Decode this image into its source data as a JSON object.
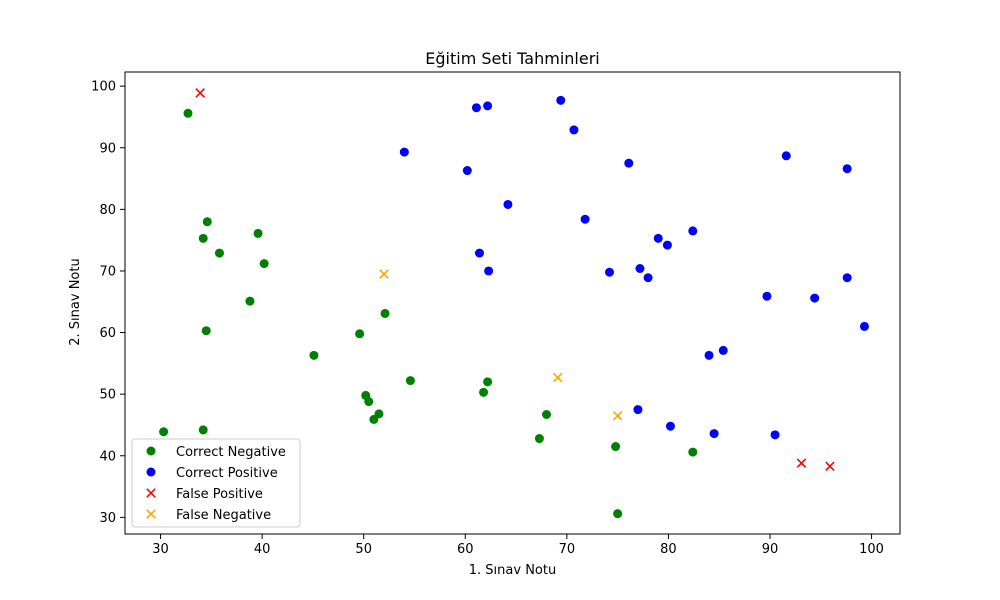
{
  "chart_data": {
    "type": "scatter",
    "title": "Eğitim Seti Tahminleri",
    "xlabel": "1. Sınav Notu",
    "ylabel": "2. Sınav Notu",
    "xlim": [
      26.5,
      102.8
    ],
    "ylim": [
      27.3,
      102.3
    ],
    "xticks": [
      30,
      40,
      50,
      60,
      70,
      80,
      90,
      100
    ],
    "yticks": [
      30,
      40,
      50,
      60,
      70,
      80,
      90,
      100
    ],
    "grid": false,
    "legend_position": "lower-left",
    "series": [
      {
        "name": "Correct Negative",
        "marker": "circle",
        "color": "#008000",
        "points": [
          [
            32.7,
            95.6
          ],
          [
            34.6,
            78.0
          ],
          [
            34.2,
            75.3
          ],
          [
            35.8,
            72.9
          ],
          [
            39.6,
            76.1
          ],
          [
            40.2,
            71.2
          ],
          [
            38.8,
            65.1
          ],
          [
            34.5,
            60.3
          ],
          [
            45.1,
            56.3
          ],
          [
            49.6,
            59.8
          ],
          [
            52.1,
            63.1
          ],
          [
            54.6,
            52.2
          ],
          [
            50.2,
            49.8
          ],
          [
            50.5,
            48.8
          ],
          [
            51.5,
            46.8
          ],
          [
            51.0,
            45.9
          ],
          [
            30.3,
            43.9
          ],
          [
            34.2,
            44.2
          ],
          [
            62.2,
            52.0
          ],
          [
            61.8,
            50.3
          ],
          [
            68.0,
            46.7
          ],
          [
            67.3,
            42.8
          ],
          [
            74.8,
            41.5
          ],
          [
            82.4,
            40.6
          ],
          [
            75.0,
            30.6
          ]
        ]
      },
      {
        "name": "Correct Positive",
        "marker": "circle",
        "color": "#0000ff",
        "points": [
          [
            61.1,
            96.5
          ],
          [
            62.2,
            96.8
          ],
          [
            69.4,
            97.7
          ],
          [
            70.7,
            92.9
          ],
          [
            54.0,
            89.3
          ],
          [
            60.2,
            86.3
          ],
          [
            76.1,
            87.5
          ],
          [
            91.6,
            88.7
          ],
          [
            97.6,
            86.6
          ],
          [
            64.2,
            80.8
          ],
          [
            71.8,
            78.4
          ],
          [
            79.0,
            75.3
          ],
          [
            79.9,
            74.2
          ],
          [
            82.4,
            76.5
          ],
          [
            61.4,
            72.9
          ],
          [
            62.3,
            70.0
          ],
          [
            74.2,
            69.8
          ],
          [
            77.2,
            70.4
          ],
          [
            78.0,
            68.9
          ],
          [
            97.6,
            68.9
          ],
          [
            89.7,
            65.9
          ],
          [
            94.4,
            65.6
          ],
          [
            99.3,
            61.0
          ],
          [
            84.0,
            56.3
          ],
          [
            85.4,
            57.1
          ],
          [
            77.0,
            47.5
          ],
          [
            80.2,
            44.8
          ],
          [
            84.5,
            43.6
          ],
          [
            90.5,
            43.4
          ]
        ]
      },
      {
        "name": "False Positive",
        "marker": "x",
        "color": "#ff0000",
        "points": [
          [
            33.9,
            98.9
          ],
          [
            93.1,
            38.8
          ],
          [
            95.9,
            38.3
          ]
        ]
      },
      {
        "name": "False Negative",
        "marker": "x",
        "color": "#ffa500",
        "points": [
          [
            52.0,
            69.5
          ],
          [
            69.1,
            52.7
          ],
          [
            75.0,
            46.5
          ]
        ]
      }
    ]
  }
}
